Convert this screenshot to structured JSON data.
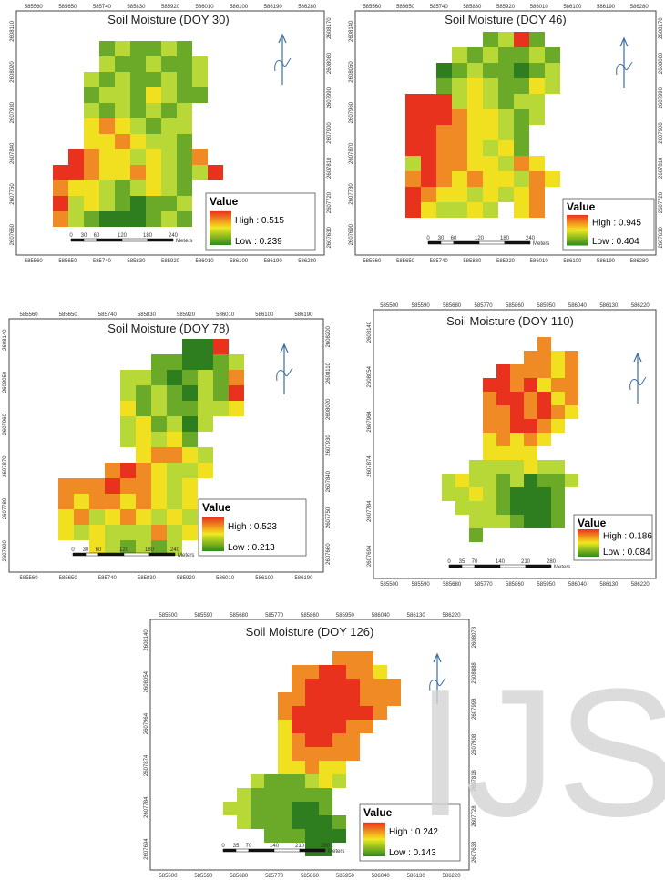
{
  "maps": [
    {
      "title": "Soil Moisture (DOY 30)",
      "top_labels": [
        "585560",
        "585650",
        "585740",
        "585830",
        "585920",
        "586010",
        "586100",
        "586190",
        "586280"
      ],
      "left_labels": [
        "2608110",
        "2608020",
        "2607930",
        "2607840",
        "2607750",
        "2607660"
      ],
      "right_labels": [
        "2608170",
        "2608080",
        "2607990",
        "2607900",
        "2607810",
        "2607720",
        "2607630"
      ],
      "legend": {
        "title": "Value",
        "high": "High : 0.515",
        "low": "Low : 0.239"
      },
      "scale": {
        "labels": [
          "0",
          "30",
          "60",
          "120",
          "180",
          "240"
        ],
        "unit": "Meters"
      }
    },
    {
      "title": "Soil Moisture (DOY 46)",
      "top_labels": [
        "585560",
        "585650",
        "585740",
        "585830",
        "585920",
        "586010",
        "586100",
        "586190",
        "586280"
      ],
      "left_labels": [
        "2608140",
        "2608050",
        "2607960",
        "2607870",
        "2607780",
        "2607690"
      ],
      "right_labels": [
        "2608170",
        "2608080",
        "2607990",
        "2607900",
        "2607810",
        "2607720",
        "2607630"
      ],
      "legend": {
        "title": "Value",
        "high": "High : 0.945",
        "low": "Low : 0.404"
      },
      "scale": {
        "labels": [
          "0",
          "30",
          "60",
          "120",
          "180",
          "240"
        ],
        "unit": "Meters"
      }
    },
    {
      "title": "Soil Moisture (DOY 78)",
      "top_labels": [
        "585560",
        "585650",
        "585740",
        "585830",
        "585920",
        "586010",
        "586100",
        "586190"
      ],
      "left_labels": [
        "2608140",
        "2608050",
        "2607960",
        "2607870",
        "2607780",
        "2607690"
      ],
      "right_labels": [
        "2608200",
        "2608110",
        "2608020",
        "2607930",
        "2607840",
        "2607750",
        "2607660"
      ],
      "legend": {
        "title": "Value",
        "high": "High : 0.523",
        "low": "Low : 0.213"
      },
      "scale": {
        "labels": [
          "0",
          "30",
          "60",
          "120",
          "180",
          "240"
        ],
        "unit": "Meters"
      }
    },
    {
      "title": "Soil Moisture (DOY 110)",
      "top_labels": [
        "585500",
        "585590",
        "585680",
        "585770",
        "585860",
        "585950",
        "586040",
        "586130",
        "586220"
      ],
      "left_labels": [
        "2608140",
        "2608054",
        "2607964",
        "2607874",
        "2607784",
        "2607694"
      ],
      "right_labels": [],
      "legend": {
        "title": "Value",
        "high": "High : 0.186",
        "low": "Low : 0.084"
      },
      "scale": {
        "labels": [
          "0",
          "35",
          "70",
          "140",
          "210",
          "280"
        ],
        "unit": "Meters"
      }
    },
    {
      "title": "Soil Moisture (DOY 126)",
      "top_labels": [
        "585500",
        "585590",
        "585680",
        "585770",
        "585860",
        "585950",
        "586040",
        "586130",
        "586220"
      ],
      "left_labels": [
        "2608140",
        "2608054",
        "2607964",
        "2607874",
        "2607784",
        "2607694"
      ],
      "right_labels": [
        "2608078",
        "2608888",
        "2607998",
        "2607908",
        "2607818",
        "2607728",
        "2607638"
      ],
      "legend": {
        "title": "Value",
        "high": "High : 0.242",
        "low": "Low : 0.143"
      },
      "scale": {
        "labels": [
          "0",
          "35",
          "70",
          "140",
          "210",
          "280"
        ],
        "unit": "Meters"
      }
    }
  ],
  "watermark": "IJS"
}
